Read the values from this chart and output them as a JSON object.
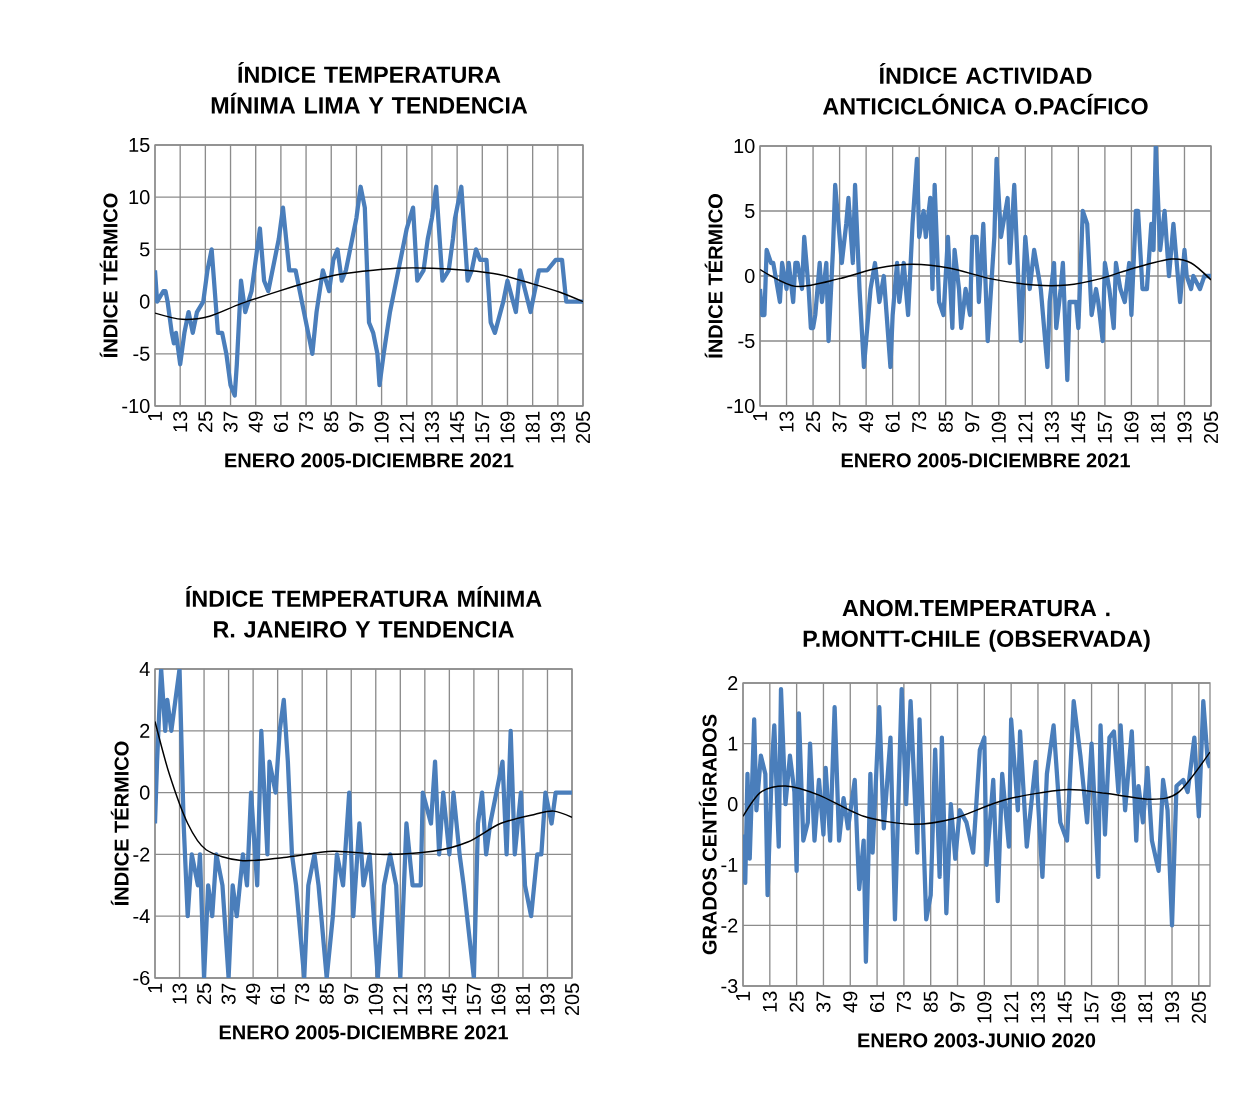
{
  "chart_data": [
    {
      "type": "line",
      "title": "ÍNDICE TEMPERATURA MÍNIMA LIMA Y TENDENCIA",
      "xlabel": "ENERO 2005-DICIEMBRE 2021",
      "ylabel": "ÍNDICE TÉRMICO",
      "xlim": [
        1,
        205
      ],
      "xticks": [
        1,
        13,
        25,
        37,
        49,
        61,
        73,
        85,
        97,
        109,
        121,
        133,
        145,
        157,
        169,
        181,
        193,
        205
      ],
      "ylim": [
        -10,
        15
      ],
      "yticks": [
        -10,
        -5,
        0,
        5,
        10,
        15
      ],
      "grid": true,
      "series": [
        {
          "color": "#4a7ebb",
          "x": [
            1,
            2,
            5,
            6,
            7,
            9,
            10,
            11,
            13,
            15,
            17,
            19,
            21,
            24,
            26,
            28,
            31,
            33,
            35,
            37,
            39,
            40,
            42,
            44,
            47,
            49,
            51,
            53,
            55,
            58,
            60,
            62,
            65,
            68,
            71,
            74,
            76,
            78,
            81,
            84,
            86,
            88,
            90,
            92,
            95,
            97,
            99,
            101,
            103,
            105,
            107,
            108,
            110,
            113,
            115,
            118,
            121,
            124,
            126,
            129,
            131,
            133,
            135,
            137,
            138,
            141,
            143,
            144,
            147,
            150,
            152,
            154,
            156,
            159,
            161,
            163,
            167,
            169,
            173,
            175,
            180,
            182,
            184,
            188,
            192,
            195,
            197,
            205
          ],
          "values": [
            3,
            0,
            1,
            1,
            0,
            -3,
            -4,
            -3,
            -6,
            -3,
            -1,
            -3,
            -1,
            0,
            3,
            5,
            -3,
            -3,
            -5,
            -8,
            -9,
            -6,
            2,
            -1,
            1,
            4,
            7,
            2,
            1,
            4,
            6,
            9,
            3,
            3,
            0,
            -3,
            -5,
            -1,
            3,
            1,
            4,
            5,
            2,
            3,
            6,
            8,
            11,
            9,
            -2,
            -3,
            -5,
            -8,
            -5,
            -1,
            1,
            4,
            7,
            9,
            2,
            3,
            6,
            8,
            11,
            5,
            2,
            3,
            6,
            8,
            11,
            2,
            3,
            5,
            4,
            4,
            -2,
            -3,
            0,
            2,
            -1,
            3,
            -1,
            1,
            3,
            3,
            4,
            4,
            0,
            0
          ]
        },
        {
          "color": "#000000",
          "x": [
            1,
            14,
            27,
            42,
            60,
            73,
            86,
            100,
            116,
            133,
            149,
            165,
            181,
            194,
            205
          ],
          "values": [
            -1.1,
            -1.7,
            -1.4,
            -0.2,
            1.0,
            1.8,
            2.5,
            2.9,
            3.2,
            3.2,
            3.0,
            2.6,
            1.7,
            0.9,
            0
          ]
        }
      ]
    },
    {
      "type": "line",
      "title": "ÍNDICE ACTIVIDAD ANTICICLÓNICA O.PACÍFICO",
      "xlabel": "ENERO 2005-DICIEMBRE 2021",
      "ylabel": "ÍNDICE TÉRMICO",
      "xlim": [
        1,
        205
      ],
      "xticks": [
        1,
        13,
        25,
        37,
        49,
        61,
        73,
        85,
        97,
        109,
        121,
        133,
        145,
        157,
        169,
        181,
        193,
        205
      ],
      "ylim": [
        -10,
        10
      ],
      "yticks": [
        -10,
        -5,
        0,
        5,
        10
      ],
      "grid": true,
      "series": [
        {
          "color": "#4a7ebb",
          "x": [
            1,
            2,
            3,
            4,
            6,
            7,
            9,
            10,
            11,
            13,
            14,
            16,
            17,
            18,
            20,
            21,
            23,
            24,
            25,
            26,
            28,
            29,
            31,
            32,
            34,
            35,
            38,
            40,
            41,
            43,
            44,
            46,
            48,
            51,
            53,
            55,
            57,
            60,
            61,
            63,
            64,
            66,
            68,
            70,
            72,
            73,
            75,
            76,
            78,
            79,
            80,
            82,
            84,
            86,
            88,
            89,
            91,
            92,
            94,
            96,
            97,
            99,
            100,
            102,
            104,
            107,
            108,
            110,
            113,
            114,
            116,
            119,
            121,
            123,
            125,
            128,
            129,
            131,
            132,
            134,
            135,
            137,
            138,
            140,
            141,
            144,
            145,
            147,
            149,
            151,
            153,
            154,
            156,
            157,
            159,
            161,
            162,
            164,
            166,
            168,
            169,
            171,
            172,
            174,
            176,
            178,
            179,
            180,
            182,
            184,
            186,
            188,
            190,
            191,
            193,
            194,
            196,
            197,
            200,
            202,
            205
          ],
          "values": [
            -1,
            -3,
            -3,
            2,
            1,
            1,
            -1,
            -2,
            1,
            -1,
            1,
            -2,
            1,
            1,
            -1,
            3,
            -1,
            -4,
            -4,
            -3,
            1,
            -2,
            1,
            -5,
            2,
            7,
            1,
            4,
            6,
            1,
            7,
            -1,
            -7,
            -1,
            1,
            -2,
            0,
            -7,
            -3,
            1,
            -2,
            1,
            -3,
            4,
            9,
            3,
            5,
            3,
            6,
            -1,
            7,
            -2,
            -3,
            3,
            -4,
            2,
            -1,
            -4,
            -1,
            -3,
            3,
            3,
            -2,
            4,
            -5,
            3,
            9,
            3,
            6,
            1,
            7,
            -5,
            3,
            -1,
            2,
            -1,
            -3,
            -7,
            -2,
            1,
            -4,
            -1,
            1,
            -8,
            -2,
            -2,
            -4,
            5,
            4,
            -3,
            -1,
            -2,
            -5,
            1,
            -1,
            -4,
            1,
            -1,
            -2,
            1,
            -3,
            5,
            5,
            -1,
            -1,
            4,
            2,
            10,
            2,
            5,
            0,
            4,
            0,
            -2,
            2,
            0,
            -1,
            0,
            -1,
            0,
            0
          ]
        },
        {
          "color": "#000000",
          "x": [
            1,
            17,
            37,
            54,
            70,
            87,
            105,
            125,
            140,
            155,
            170,
            187,
            196,
            205
          ],
          "values": [
            0.5,
            -0.8,
            -0.2,
            0.6,
            0.9,
            0.6,
            -0.2,
            -0.7,
            -0.7,
            -0.2,
            0.6,
            1.3,
            1.0,
            -0.3
          ]
        }
      ]
    },
    {
      "type": "line",
      "title": "ÍNDICE TEMPERATURA MÍNIMA R. JANEIRO Y TENDENCIA",
      "xlabel": "ENERO 2005-DICIEMBRE 2021",
      "ylabel": "ÍNDICE  TÉRMICO",
      "xlim": [
        1,
        205
      ],
      "xticks": [
        1,
        13,
        25,
        37,
        49,
        61,
        73,
        85,
        97,
        109,
        121,
        133,
        145,
        157,
        169,
        181,
        193,
        205
      ],
      "ylim": [
        -6,
        4
      ],
      "yticks": [
        -6,
        -4,
        -2,
        0,
        2,
        4
      ],
      "grid": true,
      "series": [
        {
          "color": "#4a7ebb",
          "x": [
            1,
            2,
            4,
            6,
            7,
            9,
            11,
            13,
            15,
            17,
            19,
            22,
            23,
            25,
            27,
            29,
            31,
            34,
            37,
            39,
            41,
            44,
            46,
            48,
            51,
            53,
            56,
            57,
            60,
            62,
            64,
            66,
            68,
            70,
            74,
            76,
            79,
            81,
            85,
            88,
            90,
            93,
            96,
            98,
            101,
            103,
            106,
            110,
            113,
            116,
            119,
            121,
            124,
            127,
            131,
            132,
            136,
            138,
            140,
            142,
            145,
            147,
            150,
            152,
            157,
            159,
            161,
            163,
            165,
            168,
            171,
            173,
            175,
            177,
            180,
            182,
            185,
            188,
            190,
            192,
            195,
            197,
            205
          ],
          "values": [
            -1,
            1,
            4,
            2,
            3,
            2,
            3,
            4,
            -1,
            -4,
            -2,
            -3,
            -2,
            -6,
            -3,
            -4,
            -2,
            -3,
            -6,
            -3,
            -4,
            -2,
            -3,
            0,
            -3,
            2,
            -2,
            1,
            0,
            2,
            3,
            1,
            -2,
            -3,
            -6,
            -3,
            -2,
            -3,
            -6,
            -4,
            -2,
            -3,
            0,
            -4,
            -1,
            -3,
            -2,
            -6,
            -3,
            -2,
            -3,
            -6,
            -1,
            -3,
            -3,
            0,
            -1,
            1,
            -2,
            0,
            -2,
            0,
            -2,
            -3,
            -6,
            -1,
            0,
            -2,
            -1,
            0,
            1,
            -2,
            2,
            -2,
            0,
            -3,
            -4,
            -2,
            -2,
            0,
            -1,
            0,
            0
          ]
        },
        {
          "color": "#000000",
          "x": [
            1,
            8,
            17,
            26,
            43,
            64,
            88,
            113,
            137,
            154,
            170,
            187,
            196,
            205
          ],
          "values": [
            2.3,
            0.6,
            -1.0,
            -1.85,
            -2.2,
            -2.1,
            -1.9,
            -2.0,
            -1.9,
            -1.6,
            -1.0,
            -0.7,
            -0.6,
            -0.8
          ]
        }
      ]
    },
    {
      "type": "line",
      "title": "ANOM.TEMPERATURA . P.MONTT-CHILE (OBSERVADA)",
      "xlabel": "ENERO 2003-JUNIO 2020",
      "ylabel": "GRADOS CENTÍGRADOS",
      "xlim": [
        1,
        210
      ],
      "xticks": [
        1,
        13,
        25,
        37,
        49,
        61,
        73,
        85,
        97,
        109,
        121,
        133,
        145,
        157,
        169,
        181,
        193,
        205
      ],
      "ylim": [
        -3,
        2
      ],
      "yticks": [
        -3,
        -2,
        -1,
        0,
        1,
        2
      ],
      "grid": true,
      "series": [
        {
          "color": "#4a7ebb",
          "x": [
            1,
            2,
            3,
            4,
            6,
            7,
            9,
            11,
            12,
            14,
            15,
            17,
            18,
            20,
            22,
            24,
            25,
            26,
            28,
            30,
            31,
            33,
            35,
            37,
            38,
            40,
            42,
            44,
            46,
            48,
            51,
            53,
            55,
            56,
            58,
            59,
            62,
            64,
            67,
            69,
            72,
            74,
            76,
            79,
            80,
            83,
            85,
            87,
            89,
            90,
            92,
            94,
            96,
            98,
            101,
            104,
            107,
            109,
            110,
            113,
            115,
            117,
            120,
            121,
            124,
            125,
            128,
            132,
            135,
            137,
            140,
            143,
            146,
            149,
            152,
            155,
            157,
            160,
            161,
            163,
            165,
            167,
            169,
            170,
            172,
            175,
            177,
            178,
            180,
            182,
            184,
            187,
            189,
            191,
            193,
            195,
            198,
            200,
            203,
            205,
            207,
            209,
            210
          ],
          "values": [
            -0.5,
            -1.3,
            0.5,
            -0.9,
            1.4,
            -0.1,
            0.8,
            0.5,
            -1.5,
            0.7,
            1.3,
            -0.7,
            1.9,
            0,
            0.8,
            0.2,
            -1.1,
            1.5,
            -0.6,
            -0.3,
            1.0,
            -0.6,
            0.4,
            -0.5,
            0.6,
            -0.6,
            1.6,
            -0.6,
            0.1,
            -0.4,
            0.4,
            -1.4,
            -0.6,
            -2.6,
            0.5,
            -0.8,
            1.6,
            -0.4,
            1.1,
            -1.9,
            1.9,
            0,
            1.7,
            -0.8,
            1.4,
            -1.9,
            -1.5,
            0.9,
            -1.2,
            1.1,
            -1.8,
            0,
            -0.9,
            -0.1,
            -0.3,
            -0.8,
            0.9,
            1.1,
            -1.0,
            0.4,
            -1.6,
            0.5,
            -0.7,
            1.4,
            -0.1,
            1.2,
            -0.7,
            0.7,
            -1.2,
            0.5,
            1.3,
            -0.3,
            -0.6,
            1.7,
            0.8,
            -0.3,
            1.0,
            -1.2,
            1.3,
            -0.5,
            1.1,
            1.2,
            0.2,
            1.3,
            -0.1,
            1.2,
            -0.6,
            0.3,
            -0.3,
            0.6,
            -0.6,
            -1.1,
            0.4,
            -0.1,
            -2.0,
            0.3,
            0.4,
            0.2,
            1.1,
            -0.2,
            1.7,
            0.7,
            0.6
          ]
        },
        {
          "color": "#000000",
          "x": [
            1,
            9,
            20,
            35,
            55,
            76,
            95,
            118,
            145,
            163,
            184,
            196,
            210
          ],
          "values": [
            -0.2,
            0.2,
            0.3,
            0.15,
            -0.2,
            -0.33,
            -0.24,
            0.07,
            0.24,
            0.18,
            0.08,
            0.2,
            0.86
          ]
        }
      ]
    }
  ]
}
